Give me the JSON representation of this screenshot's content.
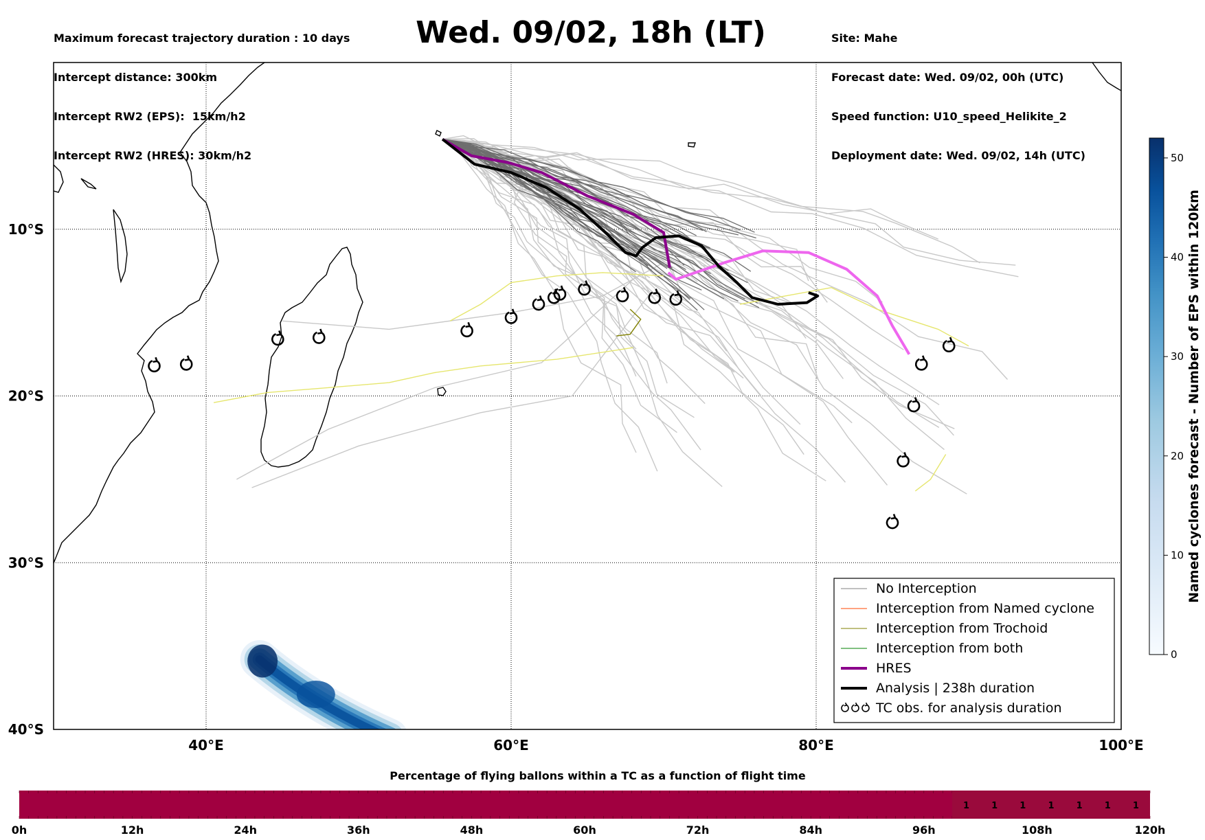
{
  "header": {
    "left": [
      "Maximum forecast trajectory duration : 10 days",
      "Intercept distance: 300km",
      "Intercept RW2 (EPS):  15km/h2",
      "Intercept RW2 (HRES): 30km/h2"
    ],
    "title": "Wed. 09/02, 18h (LT)",
    "right": [
      "Site: Mahe",
      "Forecast date: Wed. 09/02, 00h (UTC)",
      "Speed function: U10_speed_Helikite_2",
      "Deployment date: Wed. 09/02, 14h (UTC)"
    ]
  },
  "map": {
    "lon_range": [
      30,
      100
    ],
    "lat_range": [
      -40,
      0
    ],
    "lon_ticks": [
      {
        "value": 40,
        "label": "40°E"
      },
      {
        "value": 60,
        "label": "60°E"
      },
      {
        "value": 80,
        "label": "80°E"
      },
      {
        "value": 100,
        "label": "100°E"
      }
    ],
    "lat_ticks": [
      {
        "value": -10,
        "label": "10°S"
      },
      {
        "value": -20,
        "label": "20°S"
      },
      {
        "value": -30,
        "label": "30°S"
      },
      {
        "value": -40,
        "label": "40°S"
      }
    ],
    "colors": {
      "no_interception": "#808080",
      "named_cyclone": "#ff4500",
      "trochoid": "#808000",
      "both": "#008000",
      "hres": "#8b008b",
      "analysis": "#000000",
      "eps_light": "#c8c8c8",
      "eps_dark": "#6e6e6e",
      "hres_forecast": "#ee66ee",
      "cyclone_track": "#e6e66e"
    },
    "tc_obs_positions": [
      [
        36.6,
        -18.2
      ],
      [
        38.7,
        -18.1
      ],
      [
        44.7,
        -16.6
      ],
      [
        47.4,
        -16.5
      ],
      [
        57.1,
        -16.1
      ],
      [
        60.0,
        -15.3
      ],
      [
        61.8,
        -14.5
      ],
      [
        62.8,
        -14.1
      ],
      [
        63.2,
        -13.9
      ],
      [
        64.8,
        -13.6
      ],
      [
        67.3,
        -14.0
      ],
      [
        69.4,
        -14.1
      ],
      [
        70.8,
        -14.2
      ],
      [
        88.7,
        -17.0
      ],
      [
        86.9,
        -18.1
      ],
      [
        86.4,
        -20.6
      ],
      [
        85.7,
        -23.9
      ],
      [
        85.0,
        -27.6
      ]
    ]
  },
  "legend": {
    "items": [
      {
        "label": "No Interception",
        "color": "#808080",
        "width": 1
      },
      {
        "label": "Interception from Named cyclone",
        "color": "#ff4500",
        "width": 1
      },
      {
        "label": "Interception from Trochoid",
        "color": "#808000",
        "width": 1
      },
      {
        "label": "Interception from both",
        "color": "#008000",
        "width": 1
      },
      {
        "label": "HRES",
        "color": "#8b008b",
        "width": 4
      },
      {
        "label": "Analysis | 238h duration",
        "color": "#000000",
        "width": 4
      },
      {
        "label": "TC obs. for analysis duration",
        "color": "#000000",
        "width": 0,
        "icon": "tc-obs-icons"
      }
    ]
  },
  "colorbar": {
    "label": "Named cyclones forecast - Number of EPS within 120km",
    "ticks": [
      0,
      10,
      20,
      30,
      40,
      50
    ],
    "max": 52,
    "colors": [
      "#f7fbff",
      "#deebf7",
      "#c6dbef",
      "#9ecae1",
      "#6baed6",
      "#4292c6",
      "#2171b5",
      "#08519c",
      "#08306b"
    ]
  },
  "bottom_bar": {
    "title": "Percentage of flying ballons within a TC as a function of flight time",
    "ticks": [
      "0h",
      "12h",
      "24h",
      "36h",
      "48h",
      "60h",
      "72h",
      "84h",
      "96h",
      "108h",
      "120h"
    ],
    "fill_color": "#a10040",
    "cells_from_hour": 99,
    "cell_values": [
      "1",
      "1",
      "1",
      "1",
      "1",
      "1",
      "1"
    ]
  }
}
